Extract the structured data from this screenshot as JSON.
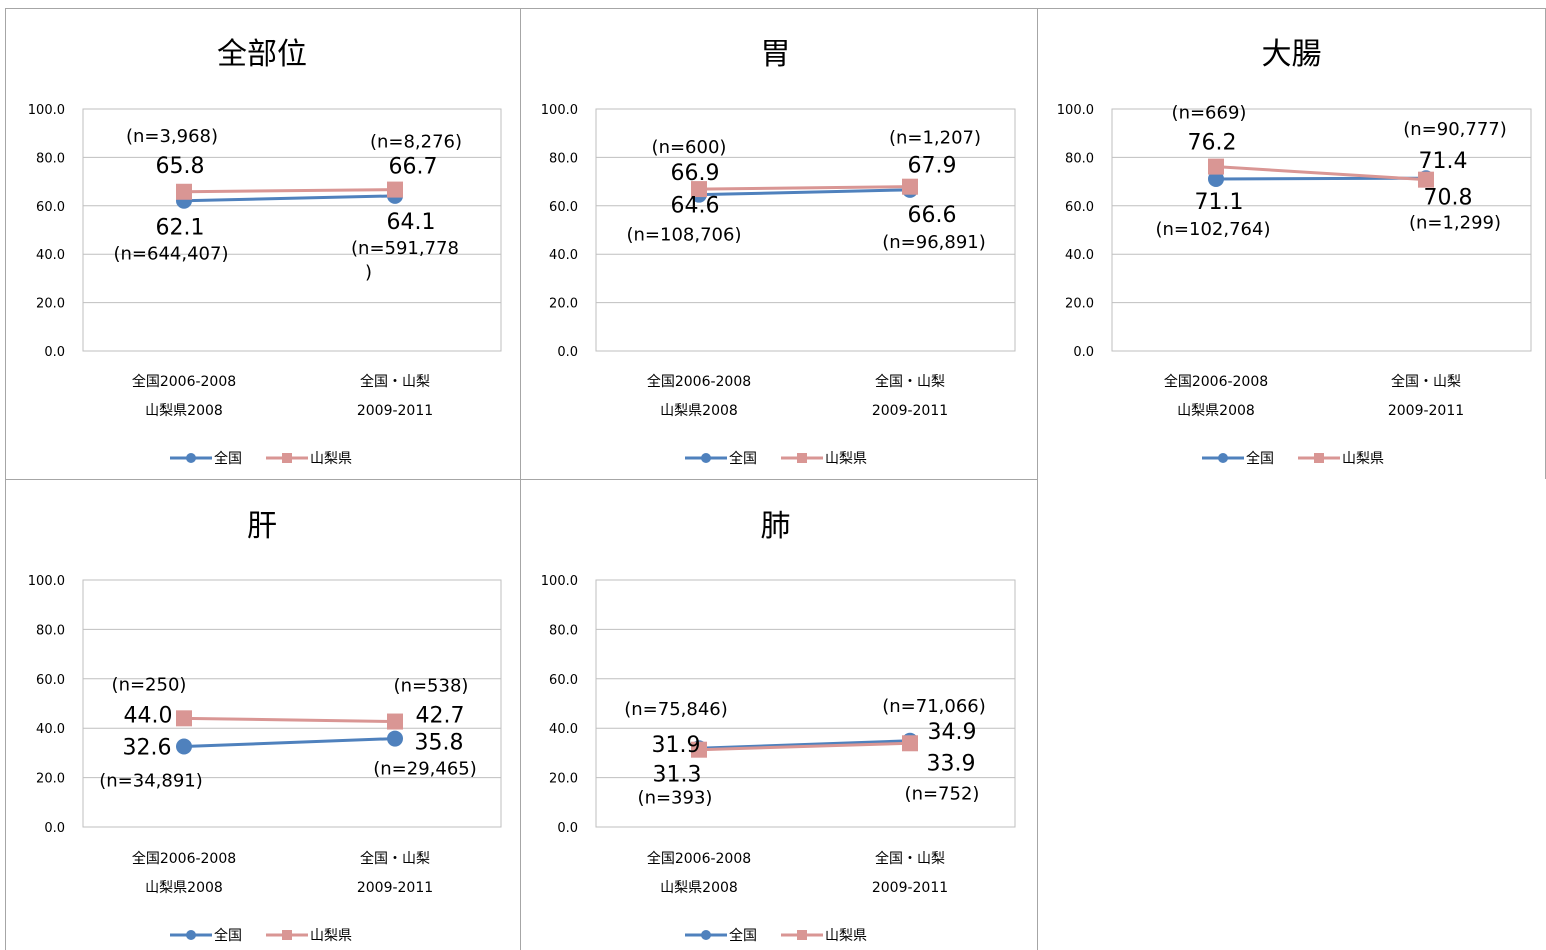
{
  "legend": {
    "zenkoku": "全国",
    "yamanashi": "山梨県"
  },
  "colors": {
    "zenkoku": "#4f81bd",
    "yamanashi": "#d99694",
    "grid": "#bfbfbf"
  },
  "chart_data": [
    {
      "type": "line",
      "title": "全部位",
      "categories": [
        [
          "全国2006-2008",
          "山梨県2008"
        ],
        [
          "全国・山梨",
          "2009-2011"
        ]
      ],
      "ylim": [
        0,
        100
      ],
      "yticks": [
        "0.0",
        "20.0",
        "40.0",
        "60.0",
        "80.0",
        "100.0"
      ],
      "series": [
        {
          "name": "全国",
          "values": [
            62.1,
            64.1
          ],
          "value_labels": [
            "62.1",
            "64.1"
          ],
          "n_labels": [
            [
              "(n=644,407)"
            ],
            [
              "(n=591,778",
              ")"
            ]
          ]
        },
        {
          "name": "山梨県",
          "values": [
            65.8,
            66.7
          ],
          "value_labels": [
            "65.8",
            "66.7"
          ],
          "n_labels": [
            [
              "(n=3,968)"
            ],
            [
              "(n=8,276)"
            ]
          ]
        }
      ]
    },
    {
      "type": "line",
      "title": "胃",
      "categories": [
        [
          "全国2006-2008",
          "山梨県2008"
        ],
        [
          "全国・山梨",
          "2009-2011"
        ]
      ],
      "ylim": [
        0,
        100
      ],
      "yticks": [
        "0.0",
        "20.0",
        "40.0",
        "60.0",
        "80.0",
        "100.0"
      ],
      "series": [
        {
          "name": "全国",
          "values": [
            64.6,
            66.6
          ],
          "value_labels": [
            "64.6",
            "66.6"
          ],
          "n_labels": [
            [
              "(n=108,706)"
            ],
            [
              "(n=96,891)"
            ]
          ]
        },
        {
          "name": "山梨県",
          "values": [
            66.9,
            67.9
          ],
          "value_labels": [
            "66.9",
            "67.9"
          ],
          "n_labels": [
            [
              "(n=600)"
            ],
            [
              "(n=1,207)"
            ]
          ]
        }
      ]
    },
    {
      "type": "line",
      "title": "大腸",
      "categories": [
        [
          "全国2006-2008",
          "山梨県2008"
        ],
        [
          "全国・山梨",
          "2009-2011"
        ]
      ],
      "ylim": [
        0,
        100
      ],
      "yticks": [
        "0.0",
        "20.0",
        "40.0",
        "60.0",
        "80.0",
        "100.0"
      ],
      "series": [
        {
          "name": "全国",
          "values": [
            71.1,
            71.4
          ],
          "value_labels": [
            "71.1",
            "71.4"
          ],
          "n_labels": [
            [
              "(n=102,764)"
            ],
            [
              "(n=90,777)"
            ]
          ]
        },
        {
          "name": "山梨県",
          "values": [
            76.2,
            70.8
          ],
          "value_labels": [
            "76.2",
            "70.8"
          ],
          "n_labels": [
            [
              "(n=669)"
            ],
            [
              "(n=1,299)"
            ]
          ]
        }
      ]
    },
    {
      "type": "line",
      "title": "肝",
      "categories": [
        [
          "全国2006-2008",
          "山梨県2008"
        ],
        [
          "全国・山梨",
          "2009-2011"
        ]
      ],
      "ylim": [
        0,
        100
      ],
      "yticks": [
        "0.0",
        "20.0",
        "40.0",
        "60.0",
        "80.0",
        "100.0"
      ],
      "series": [
        {
          "name": "全国",
          "values": [
            32.6,
            35.8
          ],
          "value_labels": [
            "32.6",
            "35.8"
          ],
          "n_labels": [
            [
              "(n=34,891)"
            ],
            [
              "(n=29,465)"
            ]
          ]
        },
        {
          "name": "山梨県",
          "values": [
            44.0,
            42.7
          ],
          "value_labels": [
            "44.0",
            "42.7"
          ],
          "n_labels": [
            [
              "(n=250)"
            ],
            [
              "(n=538)"
            ]
          ]
        }
      ]
    },
    {
      "type": "line",
      "title": "肺",
      "categories": [
        [
          "全国2006-2008",
          "山梨県2008"
        ],
        [
          "全国・山梨",
          "2009-2011"
        ]
      ],
      "ylim": [
        0,
        100
      ],
      "yticks": [
        "0.0",
        "20.0",
        "40.0",
        "60.0",
        "80.0",
        "100.0"
      ],
      "series": [
        {
          "name": "全国",
          "values": [
            31.9,
            34.9
          ],
          "value_labels": [
            "31.9",
            "34.9"
          ],
          "n_labels": [
            [
              "(n=75,846)"
            ],
            [
              "(n=71,066)"
            ]
          ]
        },
        {
          "name": "山梨県",
          "values": [
            31.3,
            33.9
          ],
          "value_labels": [
            "31.3",
            "33.9"
          ],
          "n_labels": [
            [
              "(n=393)"
            ],
            [
              "(n=752)"
            ]
          ]
        }
      ]
    }
  ]
}
